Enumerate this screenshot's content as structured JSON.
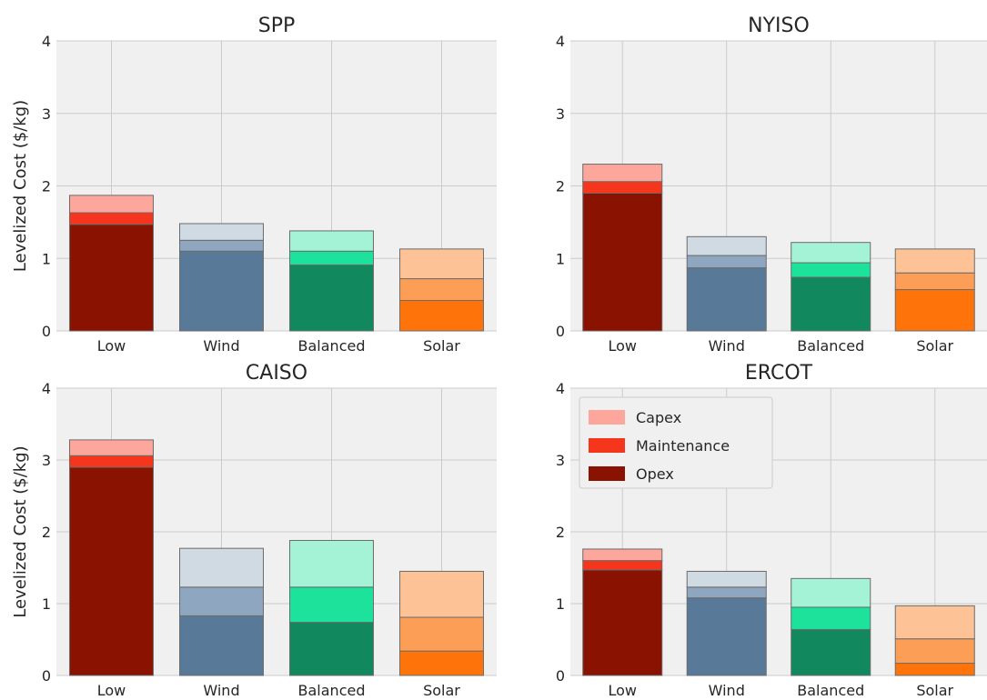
{
  "chart_data": [
    {
      "type": "bar",
      "stacked": true,
      "title": "SPP",
      "ylabel": "Levelized Cost ($/kg)",
      "xlabel": "",
      "ylim": [
        0,
        4
      ],
      "yticks": [
        "0",
        "1",
        "2",
        "3",
        "4"
      ],
      "grid": true,
      "categories": [
        "Low",
        "Wind",
        "Balanced",
        "Solar"
      ],
      "series": [
        {
          "name": "Opex",
          "values": [
            1.47,
            1.1,
            0.91,
            0.42
          ]
        },
        {
          "name": "Maintenance",
          "values": [
            0.16,
            0.15,
            0.19,
            0.3
          ]
        },
        {
          "name": "Capex",
          "values": [
            0.24,
            0.23,
            0.28,
            0.41
          ]
        }
      ]
    },
    {
      "type": "bar",
      "stacked": true,
      "title": "NYISO",
      "ylabel": "",
      "xlabel": "",
      "ylim": [
        0,
        4
      ],
      "yticks": [
        "0",
        "1",
        "2",
        "3",
        "4"
      ],
      "grid": true,
      "categories": [
        "Low",
        "Wind",
        "Balanced",
        "Solar"
      ],
      "series": [
        {
          "name": "Opex",
          "values": [
            1.9,
            0.87,
            0.74,
            0.57
          ]
        },
        {
          "name": "Maintenance",
          "values": [
            0.16,
            0.17,
            0.2,
            0.23
          ]
        },
        {
          "name": "Capex",
          "values": [
            0.24,
            0.26,
            0.28,
            0.33
          ]
        }
      ]
    },
    {
      "type": "bar",
      "stacked": true,
      "title": "CAISO",
      "ylabel": "Levelized Cost ($/kg)",
      "xlabel": "",
      "ylim": [
        0,
        4
      ],
      "yticks": [
        "0",
        "1",
        "2",
        "3",
        "4"
      ],
      "grid": true,
      "categories": [
        "Low",
        "Wind",
        "Balanced",
        "Solar"
      ],
      "series": [
        {
          "name": "Opex",
          "values": [
            2.9,
            0.83,
            0.74,
            0.34
          ]
        },
        {
          "name": "Maintenance",
          "values": [
            0.16,
            0.4,
            0.49,
            0.47
          ]
        },
        {
          "name": "Capex",
          "values": [
            0.22,
            0.54,
            0.65,
            0.64
          ]
        }
      ]
    },
    {
      "type": "bar",
      "stacked": true,
      "title": "ERCOT",
      "ylabel": "",
      "xlabel": "",
      "ylim": [
        0,
        4
      ],
      "yticks": [
        "0",
        "1",
        "2",
        "3",
        "4"
      ],
      "grid": true,
      "categories": [
        "Low",
        "Wind",
        "Balanced",
        "Solar"
      ],
      "series": [
        {
          "name": "Opex",
          "values": [
            1.47,
            1.08,
            0.64,
            0.17
          ]
        },
        {
          "name": "Maintenance",
          "values": [
            0.13,
            0.15,
            0.31,
            0.34
          ]
        },
        {
          "name": "Capex",
          "values": [
            0.16,
            0.22,
            0.4,
            0.46
          ]
        }
      ],
      "legend": {
        "placement": "top-left",
        "entries": [
          {
            "label": "Capex",
            "color": "#fca69c"
          },
          {
            "label": "Maintenance",
            "color": "#f5361d"
          },
          {
            "label": "Opex",
            "color": "#8a1200"
          }
        ]
      }
    }
  ],
  "colors": {
    "background": "#f0f0f0",
    "grid": "#cbcbcb",
    "Low": {
      "Opex": "#8a1200",
      "Maintenance": "#f5361d",
      "Capex": "#fca69c"
    },
    "Wind": {
      "Opex": "#587a98",
      "Maintenance": "#8ea6bf",
      "Capex": "#d0dae3"
    },
    "Balanced": {
      "Opex": "#12885e",
      "Maintenance": "#1de29b",
      "Capex": "#a4f3d6"
    },
    "Solar": {
      "Opex": "#fe740b",
      "Maintenance": "#fd9e56",
      "Capex": "#fdc396"
    }
  }
}
